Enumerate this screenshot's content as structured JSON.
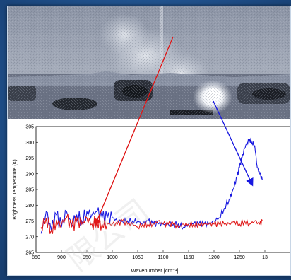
{
  "chart_data": {
    "type": "line",
    "xlabel": "Wavenumber [cm⁻¹]",
    "ylabel": "Brightness Temperature (K)",
    "xlim": [
      850,
      1350
    ],
    "ylim": [
      265,
      305
    ],
    "x_ticks": [
      "850",
      "900",
      "950",
      "1000",
      "1050",
      "1100",
      "1150",
      "1200",
      "1250",
      "13"
    ],
    "y_ticks": [
      "265",
      "270",
      "275",
      "280",
      "285",
      "290",
      "295",
      "300",
      "305"
    ],
    "grid": false,
    "series": [
      {
        "color": "#1818e0",
        "x": [
          860,
          870,
          880,
          890,
          900,
          910,
          920,
          930,
          940,
          950,
          960,
          970,
          980,
          990,
          1000,
          1010,
          1020,
          1030,
          1040,
          1050,
          1060,
          1070,
          1080,
          1090,
          1100,
          1110,
          1120,
          1130,
          1140,
          1150,
          1160,
          1170,
          1180,
          1190,
          1200,
          1210,
          1220,
          1230,
          1235,
          1240,
          1245,
          1250,
          1255,
          1260,
          1265,
          1270,
          1275,
          1280,
          1285,
          1290,
          1295
        ],
        "values": [
          271,
          278,
          272,
          277,
          273,
          278,
          274,
          277,
          275,
          278,
          277,
          278,
          276,
          276,
          276,
          275,
          275,
          275,
          275,
          275,
          274,
          275,
          274,
          274,
          274,
          274,
          274,
          274,
          273,
          274,
          274,
          274,
          274,
          274,
          275,
          276,
          279,
          282,
          284,
          286,
          289,
          292,
          295,
          298,
          300,
          301,
          300,
          299,
          292,
          290,
          288
        ]
      },
      {
        "color": "#e01818",
        "x": [
          860,
          870,
          880,
          890,
          900,
          910,
          920,
          930,
          940,
          950,
          960,
          970,
          980,
          990,
          1000,
          1010,
          1020,
          1030,
          1040,
          1050,
          1060,
          1070,
          1080,
          1090,
          1100,
          1110,
          1120,
          1130,
          1140,
          1150,
          1160,
          1170,
          1180,
          1190,
          1200,
          1210,
          1220,
          1230,
          1240,
          1250,
          1260,
          1270,
          1280,
          1290,
          1295
        ],
        "values": [
          273,
          276,
          272,
          275,
          274,
          276,
          273,
          275,
          274,
          276,
          274,
          275,
          274,
          274,
          274,
          274,
          275,
          274,
          274,
          273,
          274,
          274,
          274,
          275,
          274,
          274,
          274,
          273,
          274,
          274,
          274,
          274,
          274,
          274,
          274,
          274,
          274,
          274,
          275,
          274,
          275,
          274,
          275,
          274,
          275
        ]
      }
    ]
  },
  "watermark_text": "限公司"
}
